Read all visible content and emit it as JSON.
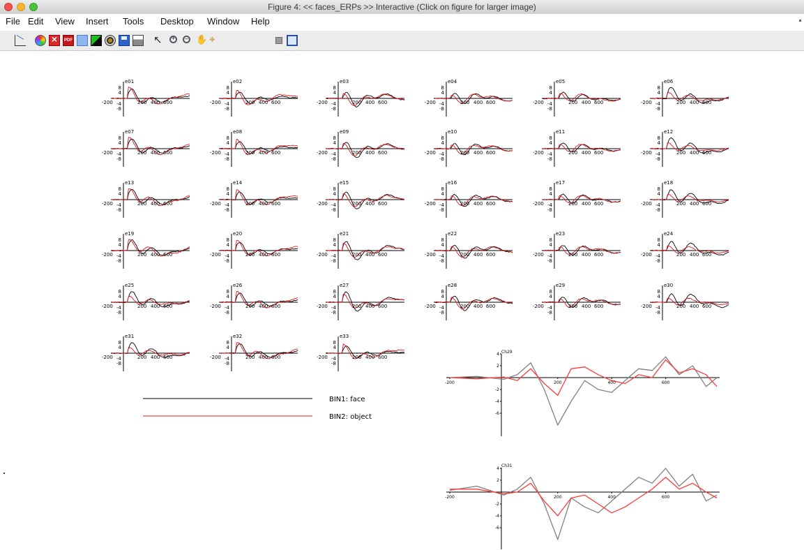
{
  "window": {
    "title": "Figure 4: << faces_ERPs >> Interactive (Click on figure for larger image)"
  },
  "menu": [
    "File",
    "Edit",
    "View",
    "Insert",
    "Tools",
    "Desktop",
    "Window",
    "Help"
  ],
  "toolbar_icons": [
    "new-plot-icon",
    "color-wheel-icon",
    "close-figure-icon",
    "pdf-icon",
    "blue-square-icon",
    "green-black-icon",
    "target-circle-icon",
    "save-icon",
    "print-icon",
    "pointer-arrow-icon",
    "zoom-in-icon",
    "zoom-out-icon",
    "pan-hand-icon",
    "data-cursor-icon",
    "gray-square-icon",
    "window-toggle-icon"
  ],
  "colors": {
    "bin1": "#000000",
    "bin2": "#e8141b",
    "detail_bin1": "#808080",
    "detail_bin2": "#ff3a3a"
  },
  "legend": {
    "bin1": "BIN1: face",
    "bin2": "BIN2: object"
  },
  "small_axis": {
    "x_ticks": [
      "-200",
      "200",
      "400",
      "600"
    ],
    "y_ticks": [
      "8",
      "4",
      "-4",
      "-8"
    ],
    "xlim": [
      -200,
      800
    ],
    "ylim": [
      -8,
      8
    ]
  },
  "channels": [
    "e01",
    "e02",
    "e03",
    "e04",
    "e05",
    "e06",
    "e07",
    "e08",
    "e09",
    "e10",
    "e11",
    "e12",
    "e13",
    "e14",
    "e15",
    "e16",
    "e17",
    "e18",
    "e19",
    "e20",
    "e21",
    "e22",
    "e23",
    "e24",
    "e25",
    "e26",
    "e27",
    "e28",
    "e29",
    "e30",
    "e31",
    "e32",
    "e33"
  ],
  "chart_data": [
    {
      "type": "line",
      "title": "Ch29",
      "x": [
        -200,
        -100,
        0,
        50,
        100,
        150,
        200,
        250,
        300,
        350,
        400,
        450,
        500,
        550,
        600,
        650,
        700,
        750,
        790
      ],
      "xticks": [
        "-200",
        "200",
        "400",
        "600"
      ],
      "yticks": [
        "4",
        "2",
        "-2",
        "-4",
        "-6"
      ],
      "xlim": [
        -200,
        800
      ],
      "ylim": [
        -9,
        5
      ],
      "series": [
        {
          "name": "BIN1: face",
          "values": [
            0,
            0.2,
            -0.3,
            0.5,
            2.5,
            -2,
            -8,
            -4,
            -0.5,
            -2,
            -2.5,
            -0.5,
            1.5,
            1.2,
            3.5,
            0.5,
            2,
            -1.5,
            0
          ]
        },
        {
          "name": "BIN2: object",
          "values": [
            0,
            -0.2,
            0.1,
            -0.5,
            1.5,
            -1,
            -3,
            1.5,
            1.8,
            0.5,
            -0.5,
            -1,
            0.5,
            0,
            3,
            0.8,
            1.5,
            0.5,
            -1.5
          ]
        }
      ]
    },
    {
      "type": "line",
      "title": "Ch31",
      "x": [
        -200,
        -100,
        0,
        50,
        100,
        150,
        200,
        250,
        300,
        350,
        400,
        450,
        500,
        550,
        600,
        650,
        700,
        750,
        790
      ],
      "xticks": [
        "-200",
        "200",
        "400",
        "600"
      ],
      "yticks": [
        "4",
        "2",
        "-2",
        "-4",
        "-6"
      ],
      "xlim": [
        -200,
        800
      ],
      "ylim": [
        -9,
        5
      ],
      "series": [
        {
          "name": "BIN1: face",
          "values": [
            0.3,
            1,
            -0.5,
            0.5,
            2.5,
            -2,
            -8,
            -1,
            -2.5,
            -3.5,
            -1.5,
            0.5,
            2.5,
            1.5,
            4,
            1,
            3,
            -1.5,
            -0.5
          ]
        },
        {
          "name": "BIN2: object",
          "values": [
            0.5,
            0.5,
            -0.3,
            0,
            1.5,
            -1.5,
            -4,
            -1,
            -0.5,
            -2,
            -3.5,
            -2.5,
            -1,
            0.5,
            2.5,
            0.5,
            1.5,
            0,
            -1
          ]
        }
      ]
    }
  ]
}
